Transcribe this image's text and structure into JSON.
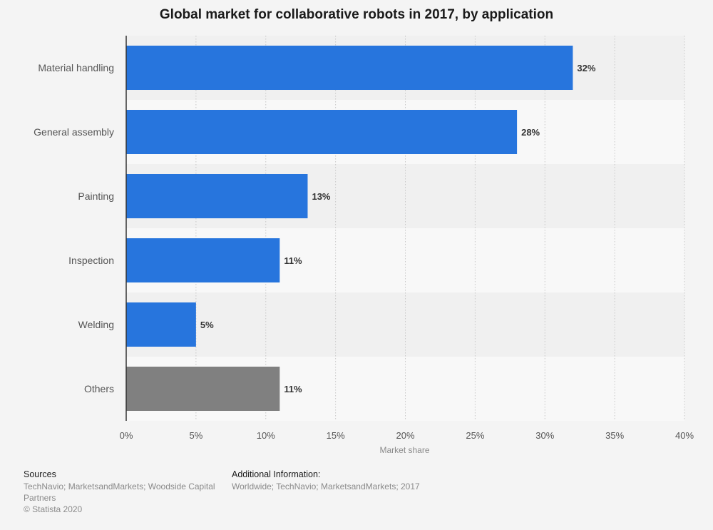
{
  "title": "Global market for collaborative robots in 2017, by application",
  "chart_data": {
    "type": "bar",
    "orientation": "horizontal",
    "title": "Global market for collaborative robots in 2017, by application",
    "xlabel": "Market share",
    "ylabel": "",
    "categories": [
      "Material handling",
      "General assembly",
      "Painting",
      "Inspection",
      "Welding",
      "Others"
    ],
    "values": [
      32,
      28,
      13,
      11,
      5,
      11
    ],
    "value_labels": [
      "32%",
      "28%",
      "13%",
      "11%",
      "5%",
      "11%"
    ],
    "xlim": [
      0,
      40
    ],
    "ticks": [
      0,
      5,
      10,
      15,
      20,
      25,
      30,
      35,
      40
    ],
    "tick_labels": [
      "0%",
      "5%",
      "10%",
      "15%",
      "20%",
      "25%",
      "30%",
      "35%",
      "40%"
    ],
    "grid": true,
    "colors": {
      "bar": "#2775dd",
      "others": "#808080",
      "band_dark": "#f0f0f0",
      "band_light": "#f8f8f8",
      "grid": "#c8c8c8",
      "axis": "#333333"
    },
    "bar_colors": [
      "#2775dd",
      "#2775dd",
      "#2775dd",
      "#2775dd",
      "#2775dd",
      "#808080"
    ]
  },
  "footer": {
    "sources_label": "Sources",
    "sources_text": "TechNavio; MarketsandMarkets; Woodside Capital Partners",
    "copyright": "© Statista 2020",
    "additional_label": "Additional Information:",
    "additional_text": "Worldwide; TechNavio; MarketsandMarkets; 2017"
  }
}
